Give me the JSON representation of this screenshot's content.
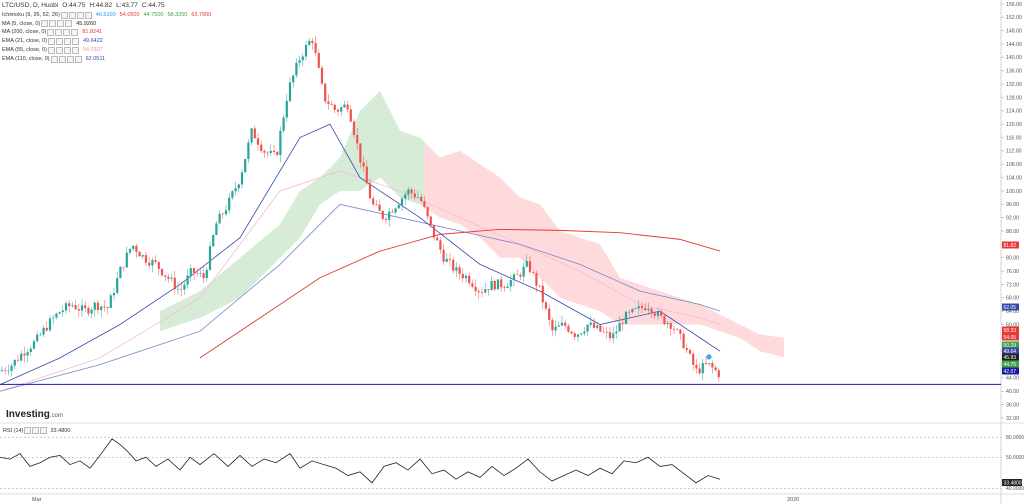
{
  "header": {
    "symbol": "LTC/USD, D, Huobi",
    "open": "O:44.75",
    "high": "H:44.82",
    "low": "L:43.77",
    "close": "C:44.75"
  },
  "indicators": [
    {
      "label": "Ichimoku (9, 26, 52, 26)",
      "values": [
        {
          "v": "46.5100",
          "color": "#2196f3"
        },
        {
          "v": "54.0500",
          "color": "#e53935"
        },
        {
          "v": "44.7500",
          "color": "#43a047"
        },
        {
          "v": "58.3350",
          "color": "#43a047"
        },
        {
          "v": "63.7900",
          "color": "#e53935"
        }
      ]
    },
    {
      "label": "MA (5, close, 0)",
      "values": [
        {
          "v": "45.9260",
          "color": "#222222"
        }
      ]
    },
    {
      "label": "MA (200, close, 0)",
      "values": [
        {
          "v": "81.8241",
          "color": "#e53935"
        }
      ]
    },
    {
      "label": "EMA (21, close, 0)",
      "values": [
        {
          "v": "49.6422",
          "color": "#3949ab"
        }
      ]
    },
    {
      "label": "EMA (55, close, 0)",
      "values": [
        {
          "v": "54.0307",
          "color": "#f48fb1"
        }
      ]
    },
    {
      "label": "EMA (110, close, 0)",
      "values": [
        {
          "v": "62.0511",
          "color": "#3949ab"
        }
      ]
    }
  ],
  "logo": {
    "main": "Investing",
    "suffix": ".com"
  },
  "rsi": {
    "label": "RSI (14)",
    "value": "33.4800",
    "levels": [
      "80.0000",
      "50.0000",
      "40.0000"
    ]
  },
  "x_axis_labels": [
    "Mar",
    "2020"
  ],
  "price_badges": [
    {
      "v": "81.82",
      "color": "#e53935"
    },
    {
      "v": "62.05",
      "color": "#3949ab"
    },
    {
      "v": "58.33",
      "color": "#e53935"
    },
    {
      "v": "54.05",
      "color": "#e53935"
    },
    {
      "v": "50.29",
      "color": "#43a047"
    },
    {
      "v": "49.64",
      "color": "#3949ab"
    },
    {
      "v": "45.93",
      "color": "#222222"
    },
    {
      "v": "44.75",
      "color": "#43a047"
    },
    {
      "v": "42.07",
      "color": "#1a1aa0"
    }
  ],
  "colors": {
    "up": "#26a69a",
    "down": "#ef5350",
    "ma200": "#e53935",
    "ema21": "#3949ab",
    "ema110": "#7986cb",
    "ema55": "#f8bbd0",
    "horizontal_line": "#1a1aa0",
    "cloud_bull": "#c8e6c9",
    "cloud_bear": "#ffcdd2"
  },
  "chart_data": {
    "type": "candlestick",
    "ylim": [
      32,
      156
    ],
    "yticks": [
      32,
      36,
      40,
      44,
      48,
      52,
      56,
      60,
      64,
      68,
      72,
      76,
      80,
      84,
      88,
      92,
      96,
      100,
      104,
      108,
      112,
      116,
      120,
      124,
      128,
      132,
      136,
      140,
      144,
      148,
      152,
      156
    ],
    "horizontal_line": 42.07,
    "close_series": [
      [
        0,
        46
      ],
      [
        12,
        48
      ],
      [
        24,
        52
      ],
      [
        36,
        55
      ],
      [
        48,
        60
      ],
      [
        60,
        64
      ],
      [
        72,
        66
      ],
      [
        84,
        64
      ],
      [
        96,
        66
      ],
      [
        108,
        65
      ],
      [
        120,
        76
      ],
      [
        132,
        84
      ],
      [
        144,
        80
      ],
      [
        156,
        78
      ],
      [
        168,
        74
      ],
      [
        180,
        70
      ],
      [
        192,
        76
      ],
      [
        204,
        74
      ],
      [
        216,
        90
      ],
      [
        228,
        96
      ],
      [
        240,
        104
      ],
      [
        252,
        118
      ],
      [
        264,
        112
      ],
      [
        276,
        110
      ],
      [
        288,
        130
      ],
      [
        300,
        140
      ],
      [
        312,
        146
      ],
      [
        324,
        128
      ],
      [
        336,
        124
      ],
      [
        348,
        126
      ],
      [
        360,
        110
      ],
      [
        372,
        96
      ],
      [
        384,
        92
      ],
      [
        396,
        96
      ],
      [
        408,
        100
      ],
      [
        420,
        98
      ],
      [
        432,
        88
      ],
      [
        444,
        80
      ],
      [
        456,
        76
      ],
      [
        468,
        74
      ],
      [
        480,
        70
      ],
      [
        492,
        72
      ],
      [
        504,
        72
      ],
      [
        516,
        74
      ],
      [
        528,
        78
      ],
      [
        540,
        70
      ],
      [
        552,
        58
      ],
      [
        564,
        60
      ],
      [
        576,
        57
      ],
      [
        588,
        60
      ],
      [
        600,
        58
      ],
      [
        612,
        56
      ],
      [
        624,
        62
      ],
      [
        636,
        64
      ],
      [
        648,
        66
      ],
      [
        660,
        62
      ],
      [
        672,
        60
      ],
      [
        684,
        54
      ],
      [
        696,
        46
      ],
      [
        708,
        48
      ],
      [
        720,
        45
      ]
    ],
    "ma200": [
      [
        200,
        50
      ],
      [
        260,
        62
      ],
      [
        320,
        74
      ],
      [
        380,
        82
      ],
      [
        440,
        87
      ],
      [
        500,
        88.5
      ],
      [
        560,
        88.2
      ],
      [
        620,
        87.5
      ],
      [
        680,
        85.5
      ],
      [
        720,
        82
      ]
    ],
    "ema21": [
      [
        0,
        42
      ],
      [
        60,
        50
      ],
      [
        120,
        60
      ],
      [
        180,
        72
      ],
      [
        240,
        86
      ],
      [
        300,
        116
      ],
      [
        330,
        120
      ],
      [
        360,
        104
      ],
      [
        420,
        92
      ],
      [
        480,
        78
      ],
      [
        540,
        70
      ],
      [
        600,
        60
      ],
      [
        660,
        64
      ],
      [
        700,
        56
      ],
      [
        720,
        52
      ]
    ],
    "ema110": [
      [
        0,
        40
      ],
      [
        100,
        48
      ],
      [
        200,
        58
      ],
      [
        280,
        78
      ],
      [
        340,
        96
      ],
      [
        400,
        92
      ],
      [
        460,
        88
      ],
      [
        520,
        84
      ],
      [
        580,
        78
      ],
      [
        640,
        70
      ],
      [
        700,
        66
      ],
      [
        720,
        64
      ]
    ],
    "ema55": [
      [
        0,
        40
      ],
      [
        100,
        50
      ],
      [
        200,
        68
      ],
      [
        280,
        100
      ],
      [
        340,
        106
      ],
      [
        400,
        100
      ],
      [
        460,
        92
      ],
      [
        520,
        84
      ],
      [
        580,
        76
      ],
      [
        640,
        66
      ],
      [
        700,
        62
      ],
      [
        720,
        60
      ]
    ],
    "cloud_top": [
      [
        160,
        64
      ],
      [
        200,
        70
      ],
      [
        240,
        80
      ],
      [
        280,
        90
      ],
      [
        300,
        100
      ],
      [
        320,
        104
      ],
      [
        340,
        110
      ],
      [
        360,
        124
      ],
      [
        380,
        130
      ],
      [
        400,
        118
      ],
      [
        420,
        116
      ],
      [
        440,
        110
      ],
      [
        460,
        112
      ],
      [
        480,
        108
      ],
      [
        500,
        104
      ],
      [
        520,
        98
      ],
      [
        540,
        96
      ],
      [
        560,
        88
      ],
      [
        600,
        84
      ],
      [
        620,
        74
      ],
      [
        660,
        70
      ],
      [
        700,
        66
      ],
      [
        740,
        60
      ],
      [
        760,
        57
      ],
      [
        786,
        56
      ]
    ],
    "cloud_bottom": [
      [
        160,
        58
      ],
      [
        200,
        62
      ],
      [
        240,
        68
      ],
      [
        280,
        80
      ],
      [
        300,
        86
      ],
      [
        320,
        96
      ],
      [
        340,
        100
      ],
      [
        360,
        100
      ],
      [
        380,
        104
      ],
      [
        400,
        98
      ],
      [
        420,
        96
      ],
      [
        440,
        92
      ],
      [
        460,
        90
      ],
      [
        480,
        86
      ],
      [
        500,
        80
      ],
      [
        520,
        80
      ],
      [
        540,
        74
      ],
      [
        560,
        68
      ],
      [
        600,
        64
      ],
      [
        620,
        60
      ],
      [
        660,
        60
      ],
      [
        700,
        60
      ],
      [
        740,
        56
      ],
      [
        760,
        52
      ],
      [
        786,
        50
      ]
    ],
    "rsi": [
      [
        0,
        58
      ],
      [
        10,
        56
      ],
      [
        20,
        62
      ],
      [
        30,
        48
      ],
      [
        40,
        52
      ],
      [
        50,
        58
      ],
      [
        60,
        60
      ],
      [
        70,
        50
      ],
      [
        80,
        54
      ],
      [
        90,
        46
      ],
      [
        100,
        60
      ],
      [
        112,
        78
      ],
      [
        120,
        72
      ],
      [
        128,
        64
      ],
      [
        136,
        54
      ],
      [
        146,
        58
      ],
      [
        156,
        48
      ],
      [
        168,
        56
      ],
      [
        180,
        44
      ],
      [
        190,
        58
      ],
      [
        200,
        50
      ],
      [
        214,
        62
      ],
      [
        228,
        48
      ],
      [
        240,
        60
      ],
      [
        252,
        48
      ],
      [
        264,
        56
      ],
      [
        276,
        52
      ],
      [
        290,
        62
      ],
      [
        300,
        46
      ],
      [
        312,
        54
      ],
      [
        324,
        50
      ],
      [
        336,
        46
      ],
      [
        348,
        38
      ],
      [
        360,
        42
      ],
      [
        372,
        30
      ],
      [
        384,
        48
      ],
      [
        396,
        52
      ],
      [
        408,
        44
      ],
      [
        420,
        56
      ],
      [
        432,
        40
      ],
      [
        444,
        44
      ],
      [
        456,
        34
      ],
      [
        468,
        42
      ],
      [
        480,
        36
      ],
      [
        492,
        48
      ],
      [
        504,
        38
      ],
      [
        516,
        46
      ],
      [
        528,
        56
      ],
      [
        540,
        42
      ],
      [
        552,
        32
      ],
      [
        564,
        38
      ],
      [
        576,
        44
      ],
      [
        588,
        38
      ],
      [
        600,
        46
      ],
      [
        612,
        40
      ],
      [
        624,
        54
      ],
      [
        636,
        52
      ],
      [
        648,
        58
      ],
      [
        660,
        48
      ],
      [
        672,
        50
      ],
      [
        684,
        40
      ],
      [
        696,
        30
      ],
      [
        708,
        38
      ],
      [
        720,
        34
      ]
    ]
  }
}
